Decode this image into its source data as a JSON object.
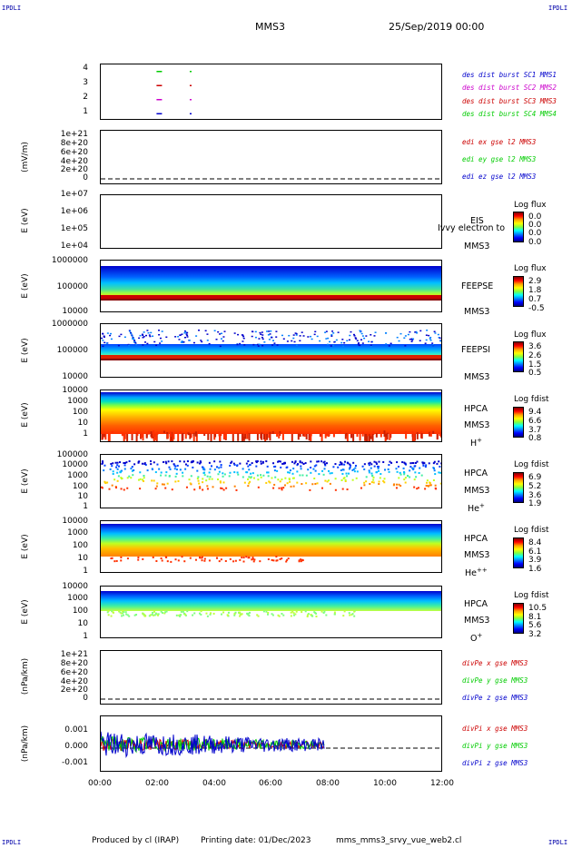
{
  "header": {
    "corner_tl": "IPDLI",
    "corner_tr": "IPDLI",
    "corner_bl": "IPDLI",
    "corner_br": "IPDLI",
    "spacecraft": "MMS3",
    "date": "25/Sep/2019 00:00"
  },
  "footer": {
    "produced": "Produced by cl (IRAP)",
    "printing": "Printing date: 01/Dec/2023",
    "file": "mms_mms3_srvy_vue_web2.cl"
  },
  "colors": {
    "blue": "#0000cc",
    "magenta": "#cc00cc",
    "red": "#cc0000",
    "green": "#00cc00",
    "dark_red": "#aa0000"
  },
  "chart_data": [
    {
      "type": "scatter",
      "id": "burst",
      "xlabel": "",
      "ylabel": "",
      "ylim": [
        0.5,
        4.5
      ],
      "yticks": [
        "4",
        "3",
        "2",
        "1"
      ],
      "legend": [
        "des dist burst SC1 MMS1",
        "des dist burst SC2 MMS2",
        "des dist burst SC3 MMS3",
        "des dist burst SC4 MMS4"
      ],
      "legend_colors": [
        "#0000cc",
        "#cc00cc",
        "#cc0000",
        "#00cc00"
      ],
      "series": [
        {
          "name": "des dist burst SC1 MMS1",
          "y": 1,
          "x_hours": [
            2.05,
            3.15
          ]
        },
        {
          "name": "des dist burst SC2 MMS2",
          "y": 2,
          "x_hours": [
            2.05,
            3.15
          ]
        },
        {
          "name": "des dist burst SC3 MMS3",
          "y": 3,
          "x_hours": [
            2.05,
            3.15
          ]
        },
        {
          "name": "des dist burst SC4 MMS4",
          "y": 4,
          "x_hours": [
            2.05,
            3.15
          ]
        }
      ]
    },
    {
      "type": "line",
      "id": "edi",
      "ylabel": "(mV/m)",
      "yticks": [
        "1e+21",
        "8e+20",
        "6e+20",
        "4e+20",
        "2e+20",
        "0"
      ],
      "legend": [
        "edi ex gse l2 MMS3",
        "edi ey gse l2 MMS3",
        "edi ez gse l2 MMS3"
      ],
      "legend_colors": [
        "#cc0000",
        "#00cc00",
        "#0000cc"
      ]
    },
    {
      "type": "heatmap",
      "id": "eis",
      "ylabel": "E (eV)",
      "yticks": [
        "1e+07",
        "1e+06",
        "1e+05",
        "1e+04"
      ],
      "side": [
        "EIS",
        "MMS3"
      ],
      "overlay_label": "Ivvy electron to",
      "cbar_title": "Log flux",
      "cbar_values": [
        "0.0",
        "0.0",
        "0.0",
        "0.0"
      ]
    },
    {
      "type": "heatmap",
      "id": "feepse",
      "ylabel": "E (eV)",
      "yticks": [
        "1000000",
        "100000",
        "10000"
      ],
      "side": [
        "FEEPSE",
        "MMS3"
      ],
      "cbar_title": "Log flux",
      "cbar_values": [
        "2.9",
        "1.8",
        "0.7",
        "-0.5"
      ]
    },
    {
      "type": "heatmap",
      "id": "feepsi",
      "ylabel": "E (eV)",
      "yticks": [
        "1000000",
        "100000",
        "10000"
      ],
      "side": [
        "FEEPSI",
        "MMS3"
      ],
      "cbar_title": "Log flux",
      "cbar_values": [
        "3.6",
        "2.6",
        "1.5",
        "0.5"
      ]
    },
    {
      "type": "heatmap",
      "id": "hpca_h",
      "ylabel": "E (eV)",
      "yticks": [
        "10000",
        "1000",
        "100",
        "10",
        "1"
      ],
      "side": [
        "HPCA",
        "MMS3",
        "H+"
      ],
      "species": "H",
      "charge": "+",
      "cbar_title": "Log fdist",
      "cbar_values": [
        "9.4",
        "6.6",
        "3.7",
        "0.8"
      ]
    },
    {
      "type": "heatmap",
      "id": "hpca_he",
      "ylabel": "E (eV)",
      "yticks": [
        "100000",
        "10000",
        "1000",
        "100",
        "10",
        "1"
      ],
      "side": [
        "HPCA",
        "MMS3",
        "He+"
      ],
      "species": "He",
      "charge": "+",
      "cbar_title": "Log fdist",
      "cbar_values": [
        "6.9",
        "5.2",
        "3.6",
        "1.9"
      ]
    },
    {
      "type": "heatmap",
      "id": "hpca_hepp",
      "ylabel": "E (eV)",
      "yticks": [
        "10000",
        "1000",
        "100",
        "10",
        "1"
      ],
      "side": [
        "HPCA",
        "MMS3",
        "He++"
      ],
      "species": "He",
      "charge": "++",
      "cbar_title": "Log fdist",
      "cbar_values": [
        "8.4",
        "6.1",
        "3.9",
        "1.6"
      ]
    },
    {
      "type": "heatmap",
      "id": "hpca_o",
      "ylabel": "E (eV)",
      "yticks": [
        "10000",
        "1000",
        "100",
        "10",
        "1"
      ],
      "side": [
        "HPCA",
        "MMS3",
        "O+"
      ],
      "species": "O",
      "charge": "+",
      "cbar_title": "Log fdist",
      "cbar_values": [
        "10.5",
        "8.1",
        "5.6",
        "3.2"
      ]
    },
    {
      "type": "line",
      "id": "divpe",
      "ylabel": "(nPa/km)",
      "yticks": [
        "1e+21",
        "8e+20",
        "6e+20",
        "4e+20",
        "2e+20",
        "0"
      ],
      "legend": [
        "divPe x gse MMS3",
        "divPe y gse MMS3",
        "divPe z gse MMS3"
      ],
      "legend_colors": [
        "#cc0000",
        "#00cc00",
        "#0000cc"
      ]
    },
    {
      "type": "line",
      "id": "divpi",
      "ylabel": "(nPa/km)",
      "yticks": [
        "0.001",
        "0.000",
        "-0.001"
      ],
      "ylim": [
        -0.0015,
        0.0015
      ],
      "data_end_hours": 7.85,
      "legend": [
        "divPi x gse MMS3",
        "divPi y gse MMS3",
        "divPi z gse MMS3"
      ],
      "legend_colors": [
        "#cc0000",
        "#00cc00",
        "#0000cc"
      ]
    }
  ],
  "xaxis": {
    "ticks": [
      "00:00",
      "02:00",
      "04:00",
      "06:00",
      "08:00",
      "10:00",
      "12:00"
    ],
    "range_hours": [
      0,
      12
    ]
  }
}
